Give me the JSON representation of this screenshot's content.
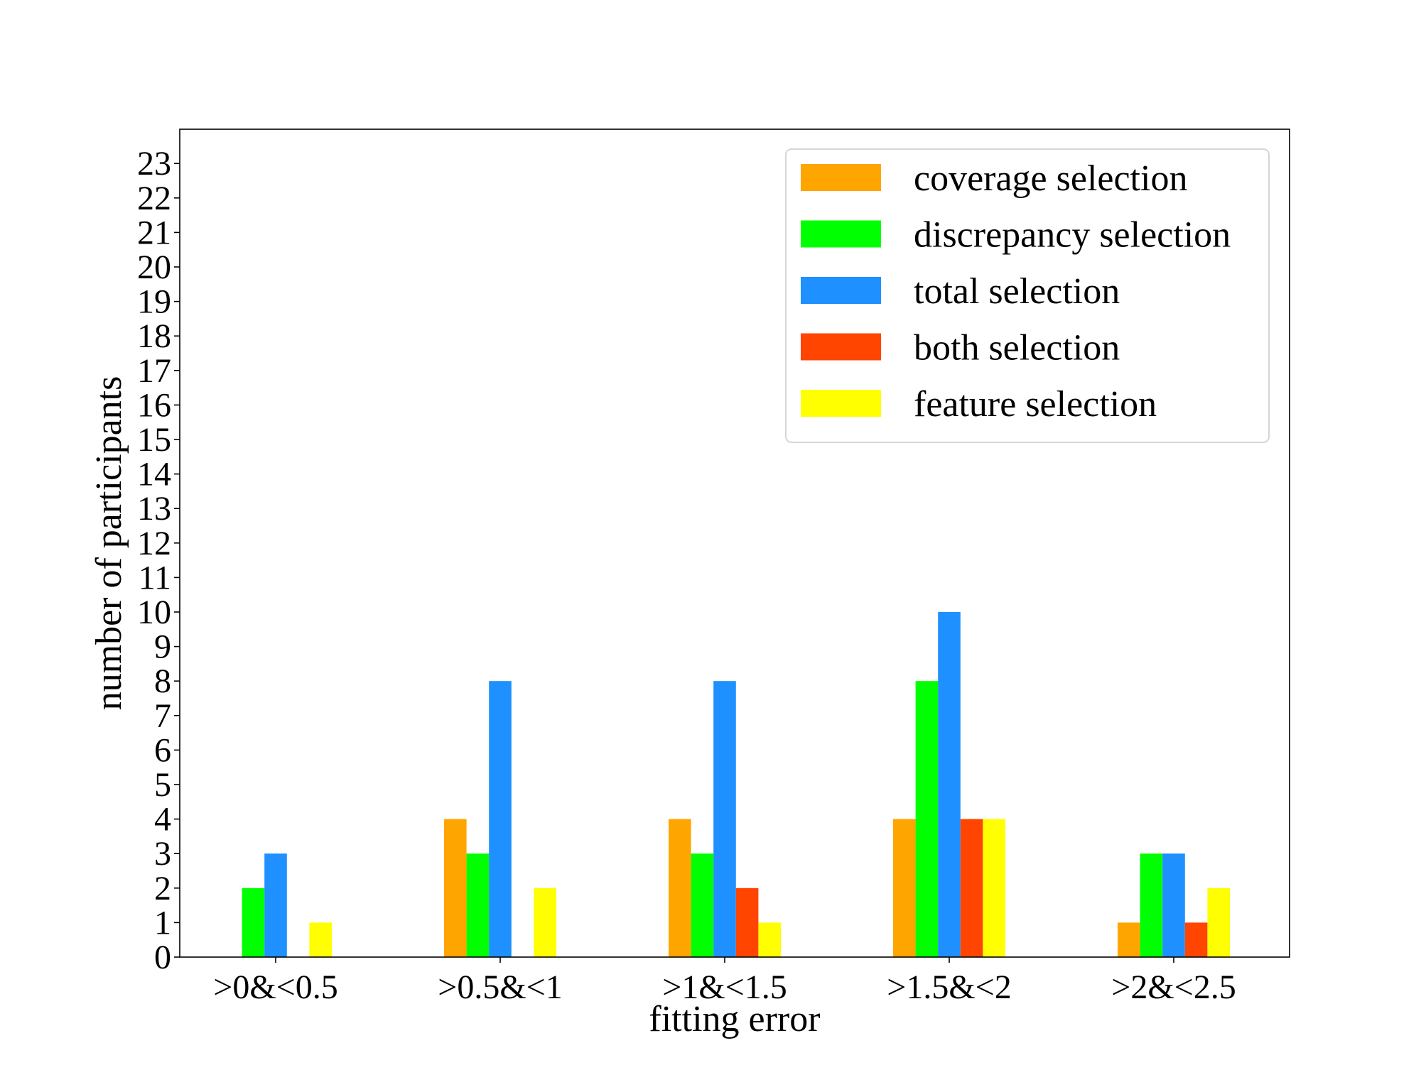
{
  "chart_data": {
    "type": "bar",
    "title": "",
    "xlabel": "fitting error",
    "ylabel": "number of participants",
    "categories": [
      ">0&<0.5",
      ">0.5&<1",
      ">1&<1.5",
      ">1.5&<2",
      ">2&<2.5"
    ],
    "ylim": [
      0,
      24
    ],
    "yticks": [
      0,
      1,
      2,
      3,
      4,
      5,
      6,
      7,
      8,
      9,
      10,
      11,
      12,
      13,
      14,
      15,
      16,
      17,
      18,
      19,
      20,
      21,
      22,
      23
    ],
    "grid": false,
    "legend_position": "top-right",
    "series": [
      {
        "name": "coverage selection",
        "color": "#FFA500",
        "values": [
          0,
          4,
          4,
          4,
          1
        ]
      },
      {
        "name": "discrepancy selection",
        "color": "#00FF00",
        "values": [
          2,
          3,
          3,
          8,
          3
        ]
      },
      {
        "name": "total selection",
        "color": "#1E90FF",
        "values": [
          3,
          8,
          8,
          10,
          3
        ]
      },
      {
        "name": "both selection",
        "color": "#FF4500",
        "values": [
          0,
          0,
          2,
          4,
          1
        ]
      },
      {
        "name": "feature selection",
        "color": "#FFFF00",
        "values": [
          1,
          2,
          1,
          4,
          2
        ]
      }
    ]
  }
}
